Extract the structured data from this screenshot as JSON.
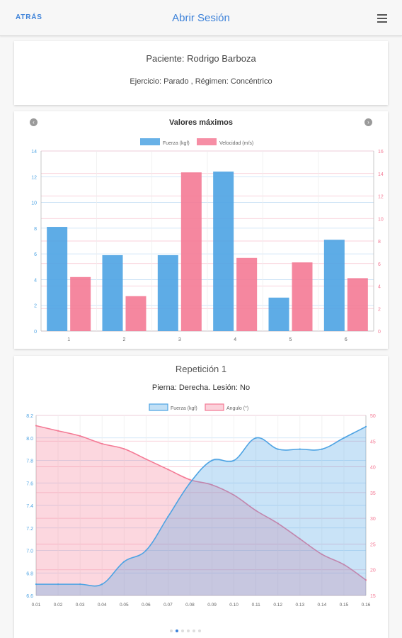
{
  "header": {
    "back_label": "ATRÁS",
    "title": "Abrir Sesión",
    "menu_icon": "hamburger-menu-icon"
  },
  "patient": {
    "name_line": "Paciente: Rodrigo Barboza",
    "exercise_line": "Ejercicio: Parado , Régimen: Concéntrico"
  },
  "chart1": {
    "title": "Valores máximos",
    "prev_icon": "chevron-left-icon",
    "next_icon": "chevron-right-icon"
  },
  "repetition": {
    "title": "Repetición 1",
    "subtitle": "Pierna: Derecha. Lesión: No"
  },
  "pager": {
    "count": 6,
    "active": 1
  },
  "colors": {
    "accent": "#3d82d9",
    "blue_series": "#4da3e3",
    "pink_series": "#f47a95"
  },
  "chart_data": [
    {
      "type": "bar",
      "title": "Valores máximos",
      "categories": [
        "1",
        "2",
        "3",
        "4",
        "5",
        "6"
      ],
      "series": [
        {
          "name": "Fuerza (kgf)",
          "axis": "left",
          "values": [
            8.1,
            5.9,
            5.9,
            12.4,
            2.6,
            7.1
          ]
        },
        {
          "name": "Velocidad (m/s)",
          "axis": "right",
          "values": [
            4.8,
            3.1,
            14.1,
            6.5,
            6.1,
            4.7
          ]
        }
      ],
      "ylim_left": [
        0,
        14
      ],
      "yticks_left": [
        "0",
        "2",
        "4",
        "6",
        "8",
        "10",
        "12",
        "14"
      ],
      "ylim_right": [
        0,
        16
      ],
      "yticks_right": [
        "0",
        "2",
        "4",
        "6",
        "8",
        "10",
        "12",
        "14",
        "16"
      ],
      "legend": "top-center",
      "grid": true
    },
    {
      "type": "area",
      "x": [
        0.01,
        0.02,
        0.03,
        0.04,
        0.05,
        0.06,
        0.07,
        0.08,
        0.09,
        0.1,
        0.11,
        0.12,
        0.13,
        0.14,
        0.15,
        0.16
      ],
      "xticks": [
        "0.01",
        "0.02",
        "0.03",
        "0.04",
        "0.05",
        "0.06",
        "0.07",
        "0.08",
        "0.09",
        "0.10",
        "0.11",
        "0.12",
        "0.13",
        "0.14",
        "0.15",
        "0.16"
      ],
      "series": [
        {
          "name": "Fuerza (kgf)",
          "axis": "left",
          "values": [
            6.7,
            6.7,
            6.7,
            6.7,
            6.9,
            7.0,
            7.3,
            7.6,
            7.8,
            7.8,
            8.0,
            7.9,
            7.9,
            7.9,
            8.0,
            8.1
          ]
        },
        {
          "name": "Angulo (°)",
          "axis": "right",
          "values": [
            48,
            47,
            46,
            44.5,
            43.5,
            41.5,
            39.5,
            37.5,
            36.5,
            34.5,
            31.5,
            29,
            26,
            23,
            21,
            18
          ]
        }
      ],
      "ylim_left": [
        6.6,
        8.2
      ],
      "yticks_left": [
        "6.6",
        "6.8",
        "7.0",
        "7.2",
        "7.4",
        "7.6",
        "7.8",
        "8.0",
        "8.2"
      ],
      "ylim_right": [
        15,
        50
      ],
      "yticks_right": [
        "15",
        "20",
        "25",
        "30",
        "35",
        "40",
        "45",
        "50"
      ],
      "legend": "top-center",
      "grid": true
    }
  ]
}
